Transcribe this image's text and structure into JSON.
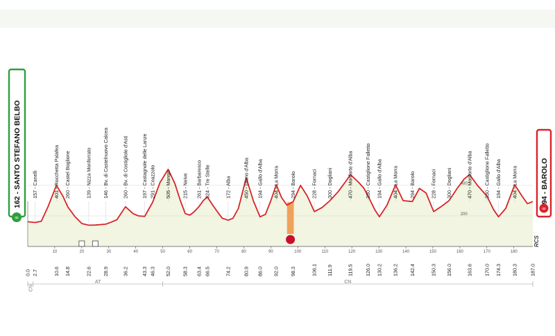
{
  "chart_data": {
    "type": "area",
    "title": "",
    "xlabel": "",
    "ylabel": "",
    "xlim": [
      0,
      187
    ],
    "ylim": [
      0,
      600
    ],
    "grid": false,
    "start": {
      "label": "162 - SANTO STEFANO BELBO",
      "km": "0.0",
      "color": "#2e9e3e"
    },
    "finish": {
      "label": "294 - BAROLO",
      "km": "187.0",
      "color": "#d8232a"
    },
    "x_ticks": [
      10,
      20,
      30,
      40,
      50,
      60,
      70,
      80,
      90,
      100,
      110,
      120,
      130,
      140,
      150,
      160,
      170,
      180
    ],
    "y_ticks": [
      200,
      400
    ],
    "regions": [
      {
        "label": "CN",
        "from": 0,
        "to": 2
      },
      {
        "label": "AT",
        "from": 2,
        "to": 50
      },
      {
        "label": "CN",
        "from": 50,
        "to": 187
      }
    ],
    "feed_zone": {
      "from": 96,
      "to": 98.5
    },
    "sprints": [
      20,
      25
    ],
    "waypoints": [
      {
        "km": 2.7,
        "label": "157 - Canelli"
      },
      {
        "km": 10.6,
        "label": "401 - Rocchetta Palafea"
      },
      {
        "km": 14.8,
        "label": "260 - Castel Boglione"
      },
      {
        "km": 22.6,
        "label": "139 - Nizza Monferrato"
      },
      {
        "km": 28.9,
        "label": "146 - Bv. di Castelnuovo Calcea"
      },
      {
        "km": 36.2,
        "label": "260 - Bv. di Costigliole d'Asti"
      },
      {
        "km": 43.3,
        "label": "197 - Castagnole delle Lanze"
      },
      {
        "km": 46.3,
        "label": "291 - Coazzolo"
      },
      {
        "km": 52.0,
        "label": "505 - Mango"
      },
      {
        "km": 58.3,
        "label": "215 - Neive"
      },
      {
        "km": 63.4,
        "label": "261 - Barbaresco"
      },
      {
        "km": 66.5,
        "label": "324 - Tre Stelle"
      },
      {
        "km": 74.2,
        "label": "172 - Alba"
      },
      {
        "km": 80.9,
        "label": "450 - Diano d'Alba"
      },
      {
        "km": 86.0,
        "label": "194 - Gallo d'Alba"
      },
      {
        "km": 92.0,
        "label": "404 - La Morra"
      },
      {
        "km": 98.3,
        "label": "294 - Barolo"
      },
      {
        "km": 106.1,
        "label": "228 - Fornaci"
      },
      {
        "km": 111.9,
        "label": "300 - Dogliani"
      },
      {
        "km": 119.5,
        "label": "470 - Monforte d'Alba"
      },
      {
        "km": 126.0,
        "label": "330 - Castiglione Falletto"
      },
      {
        "km": 130.2,
        "label": "194 - Gallo d'Alba"
      },
      {
        "km": 136.2,
        "label": "404 - La Morra"
      },
      {
        "km": 142.4,
        "label": "294 - Barolo"
      },
      {
        "km": 150.3,
        "label": "228 - Fornaci"
      },
      {
        "km": 156.0,
        "label": "300 - Dogliani"
      },
      {
        "km": 163.6,
        "label": "470 - Monforte d'Alba"
      },
      {
        "km": 170.0,
        "label": "330 - Castiglione Falletto"
      },
      {
        "km": 174.3,
        "label": "194 - Gallo d'Alba"
      },
      {
        "km": 180.3,
        "label": "404 - La Morra"
      }
    ],
    "km_labels": [
      "0.0",
      "2.7",
      "10.6",
      "14.8",
      "22.6",
      "28.9",
      "36.2",
      "43.3",
      "46.3",
      "52.0",
      "58.3",
      "63.4",
      "66.5",
      "74.2",
      "80.9",
      "86.0",
      "92.0",
      "98.3",
      "106.1",
      "111.9",
      "119.5",
      "126.0",
      "130.2",
      "136.2",
      "142.4",
      "150.3",
      "156.0",
      "163.6",
      "170.0",
      "174.3",
      "180.3",
      "187.0"
    ],
    "profile": [
      [
        0,
        162
      ],
      [
        2.7,
        157
      ],
      [
        5,
        165
      ],
      [
        7.5,
        260
      ],
      [
        10.6,
        401
      ],
      [
        13,
        330
      ],
      [
        14.8,
        260
      ],
      [
        17.5,
        195
      ],
      [
        20,
        150
      ],
      [
        22.6,
        139
      ],
      [
        25,
        140
      ],
      [
        28.9,
        146
      ],
      [
        31,
        160
      ],
      [
        33,
        175
      ],
      [
        36.2,
        260
      ],
      [
        39,
        215
      ],
      [
        41,
        200
      ],
      [
        43.3,
        197
      ],
      [
        46.3,
        291
      ],
      [
        49,
        420
      ],
      [
        52.0,
        505
      ],
      [
        54.5,
        410
      ],
      [
        56.5,
        300
      ],
      [
        58.3,
        215
      ],
      [
        60,
        205
      ],
      [
        61.5,
        225
      ],
      [
        63.4,
        261
      ],
      [
        65,
        300
      ],
      [
        66.5,
        324
      ],
      [
        68.5,
        270
      ],
      [
        70.5,
        220
      ],
      [
        72,
        185
      ],
      [
        74.2,
        172
      ],
      [
        76,
        185
      ],
      [
        78,
        250
      ],
      [
        80.9,
        450
      ],
      [
        83.5,
        300
      ],
      [
        86.0,
        194
      ],
      [
        88,
        210
      ],
      [
        90,
        300
      ],
      [
        92.0,
        404
      ],
      [
        94,
        320
      ],
      [
        96,
        270
      ],
      [
        98.3,
        294
      ],
      [
        101,
        400
      ],
      [
        103.5,
        330
      ],
      [
        106.1,
        228
      ],
      [
        109,
        255
      ],
      [
        111.9,
        300
      ],
      [
        115,
        360
      ],
      [
        117.5,
        420
      ],
      [
        119.5,
        470
      ],
      [
        122.5,
        420
      ],
      [
        124.5,
        380
      ],
      [
        126.0,
        330
      ],
      [
        128.5,
        240
      ],
      [
        130.2,
        194
      ],
      [
        133,
        270
      ],
      [
        136.2,
        404
      ],
      [
        139,
        300
      ],
      [
        142.4,
        294
      ],
      [
        145,
        380
      ],
      [
        147.5,
        350
      ],
      [
        150.3,
        228
      ],
      [
        153,
        260
      ],
      [
        156.0,
        300
      ],
      [
        159,
        380
      ],
      [
        161.5,
        440
      ],
      [
        163.6,
        470
      ],
      [
        166.5,
        400
      ],
      [
        170.0,
        330
      ],
      [
        172.5,
        240
      ],
      [
        174.3,
        194
      ],
      [
        177,
        250
      ],
      [
        180.3,
        404
      ],
      [
        183,
        330
      ],
      [
        185,
        280
      ],
      [
        187,
        294
      ]
    ]
  }
}
